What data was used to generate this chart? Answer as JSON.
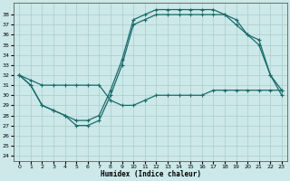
{
  "xlabel": "Humidex (Indice chaleur)",
  "background_color": "#cce8e8",
  "grid_color": "#aacccc",
  "line_color": "#1a6b6b",
  "xlim": [
    -0.5,
    23.5
  ],
  "ylim": [
    23.5,
    39.2
  ],
  "xticks": [
    0,
    1,
    2,
    3,
    4,
    5,
    6,
    7,
    8,
    9,
    10,
    11,
    12,
    13,
    14,
    15,
    16,
    17,
    18,
    19,
    20,
    21,
    22,
    23
  ],
  "yticks": [
    24,
    25,
    26,
    27,
    28,
    29,
    30,
    31,
    32,
    33,
    34,
    35,
    36,
    37,
    38
  ],
  "line1_y": [
    32,
    31,
    29,
    28.5,
    28,
    27,
    27,
    27.5,
    30,
    33,
    37,
    37.5,
    38,
    38,
    38,
    38,
    38,
    38,
    38,
    37,
    36,
    35.5,
    32,
    30
  ],
  "line2_y": [
    32,
    31,
    29,
    28.5,
    28,
    27.5,
    27.5,
    28,
    30.5,
    33.5,
    37.5,
    38,
    38.5,
    38.5,
    38.5,
    38.5,
    38.5,
    38.5,
    38,
    37.5,
    36,
    35,
    32,
    30.5
  ],
  "line3_y": [
    32,
    31.5,
    31,
    31,
    31,
    31,
    31,
    31,
    29.5,
    29,
    29,
    29.5,
    30,
    30,
    30,
    30,
    30,
    30.5,
    30.5,
    30.5,
    30.5,
    30.5,
    30.5,
    30.5
  ]
}
